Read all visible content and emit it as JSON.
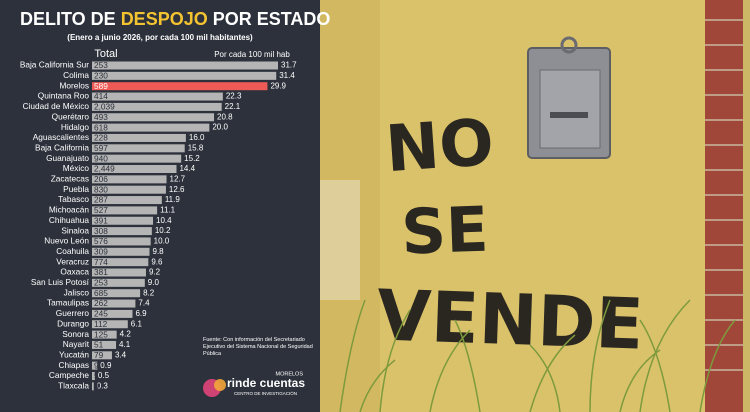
{
  "chart_data": {
    "type": "bar",
    "orientation": "horizontal",
    "title": [
      "DELITO DE ",
      "DESPOJO",
      " POR ESTADO"
    ],
    "title_colors": [
      "#ffffff",
      "#f4c430",
      "#ffffff"
    ],
    "subtitle": "(Enero a junio 2026, por cada 100 mil habitantes)",
    "categories": [
      "Baja California Sur",
      "Colima",
      "Morelos",
      "Quintana Roo",
      "Ciudad de México",
      "Querétaro",
      "Hidalgo",
      "Aguascalientes",
      "Baja California",
      "Guanajuato",
      "México",
      "Zacatecas",
      "Puebla",
      "Tabasco",
      "Michoacán",
      "Chihuahua",
      "Sinaloa",
      "Nuevo León",
      "Coahuila",
      "Veracruz",
      "Oaxaca",
      "San Luis Potosí",
      "Jalisco",
      "Tamaulipas",
      "Guerrero",
      "Durango",
      "Sonora",
      "Nayarit",
      "Yucatán",
      "Chiapas",
      "Campeche",
      "Tlaxcala"
    ],
    "series": [
      {
        "name": "Por cada 100 mil hab",
        "color": "#b5b5b5",
        "values": [
          31.7,
          31.4,
          29.9,
          22.3,
          22.1,
          20.8,
          20.0,
          16.0,
          15.8,
          15.2,
          14.4,
          12.7,
          12.6,
          11.9,
          11.1,
          10.4,
          10.2,
          10.0,
          9.8,
          9.6,
          9.2,
          9.0,
          8.2,
          7.4,
          6.9,
          6.1,
          4.2,
          4.1,
          3.4,
          0.9,
          0.5,
          0.3
        ],
        "value_labels": [
          "31.7",
          "31.4",
          "29.9",
          "22.3",
          "22.1",
          "20.8",
          "20.0",
          "16.0",
          "15.8",
          "15.2",
          "14.4",
          "12.7",
          "12.6",
          "11.9",
          "11.1",
          "10.4",
          "10.2",
          "10.0",
          "9.8",
          "9.6",
          "9.2",
          "9.0",
          "8.2",
          "7.4",
          "6.9",
          "6.1",
          "4.2",
          "4.1",
          "3.4",
          "0.9",
          "0.5",
          "0.3"
        ]
      },
      {
        "name": "Total",
        "values": [
          253,
          230,
          589,
          414,
          2039,
          493,
          618,
          228,
          597,
          940,
          2449,
          206,
          830,
          287,
          527,
          391,
          308,
          576,
          309,
          774,
          381,
          253,
          685,
          262,
          245,
          112,
          125,
          51,
          79,
          9,
          5,
          4
        ],
        "value_labels": [
          "253",
          "230",
          "589",
          "414",
          "2,039",
          "493",
          "618",
          "228",
          "597",
          "940",
          "2,449",
          "206",
          "830",
          "287",
          "527",
          "391",
          "308",
          "576",
          "309",
          "774",
          "381",
          "253",
          "685",
          "262",
          "245",
          "112",
          "125",
          "51",
          "79",
          "9",
          "5",
          "4"
        ]
      }
    ],
    "highlight": "Morelos",
    "highlight_color": "#ee5a55",
    "source": "Fuente: Con información del Secretariado Ejecutivo del Sistema Nacional de Seguridad Pública",
    "logo": {
      "top": "MORELOS",
      "main": "rinde cuentas",
      "bottom": "CENTRO DE INVESTIGACIÓN"
    }
  },
  "photo": {
    "graffiti": [
      "NO",
      "SE",
      "VENDE"
    ]
  }
}
